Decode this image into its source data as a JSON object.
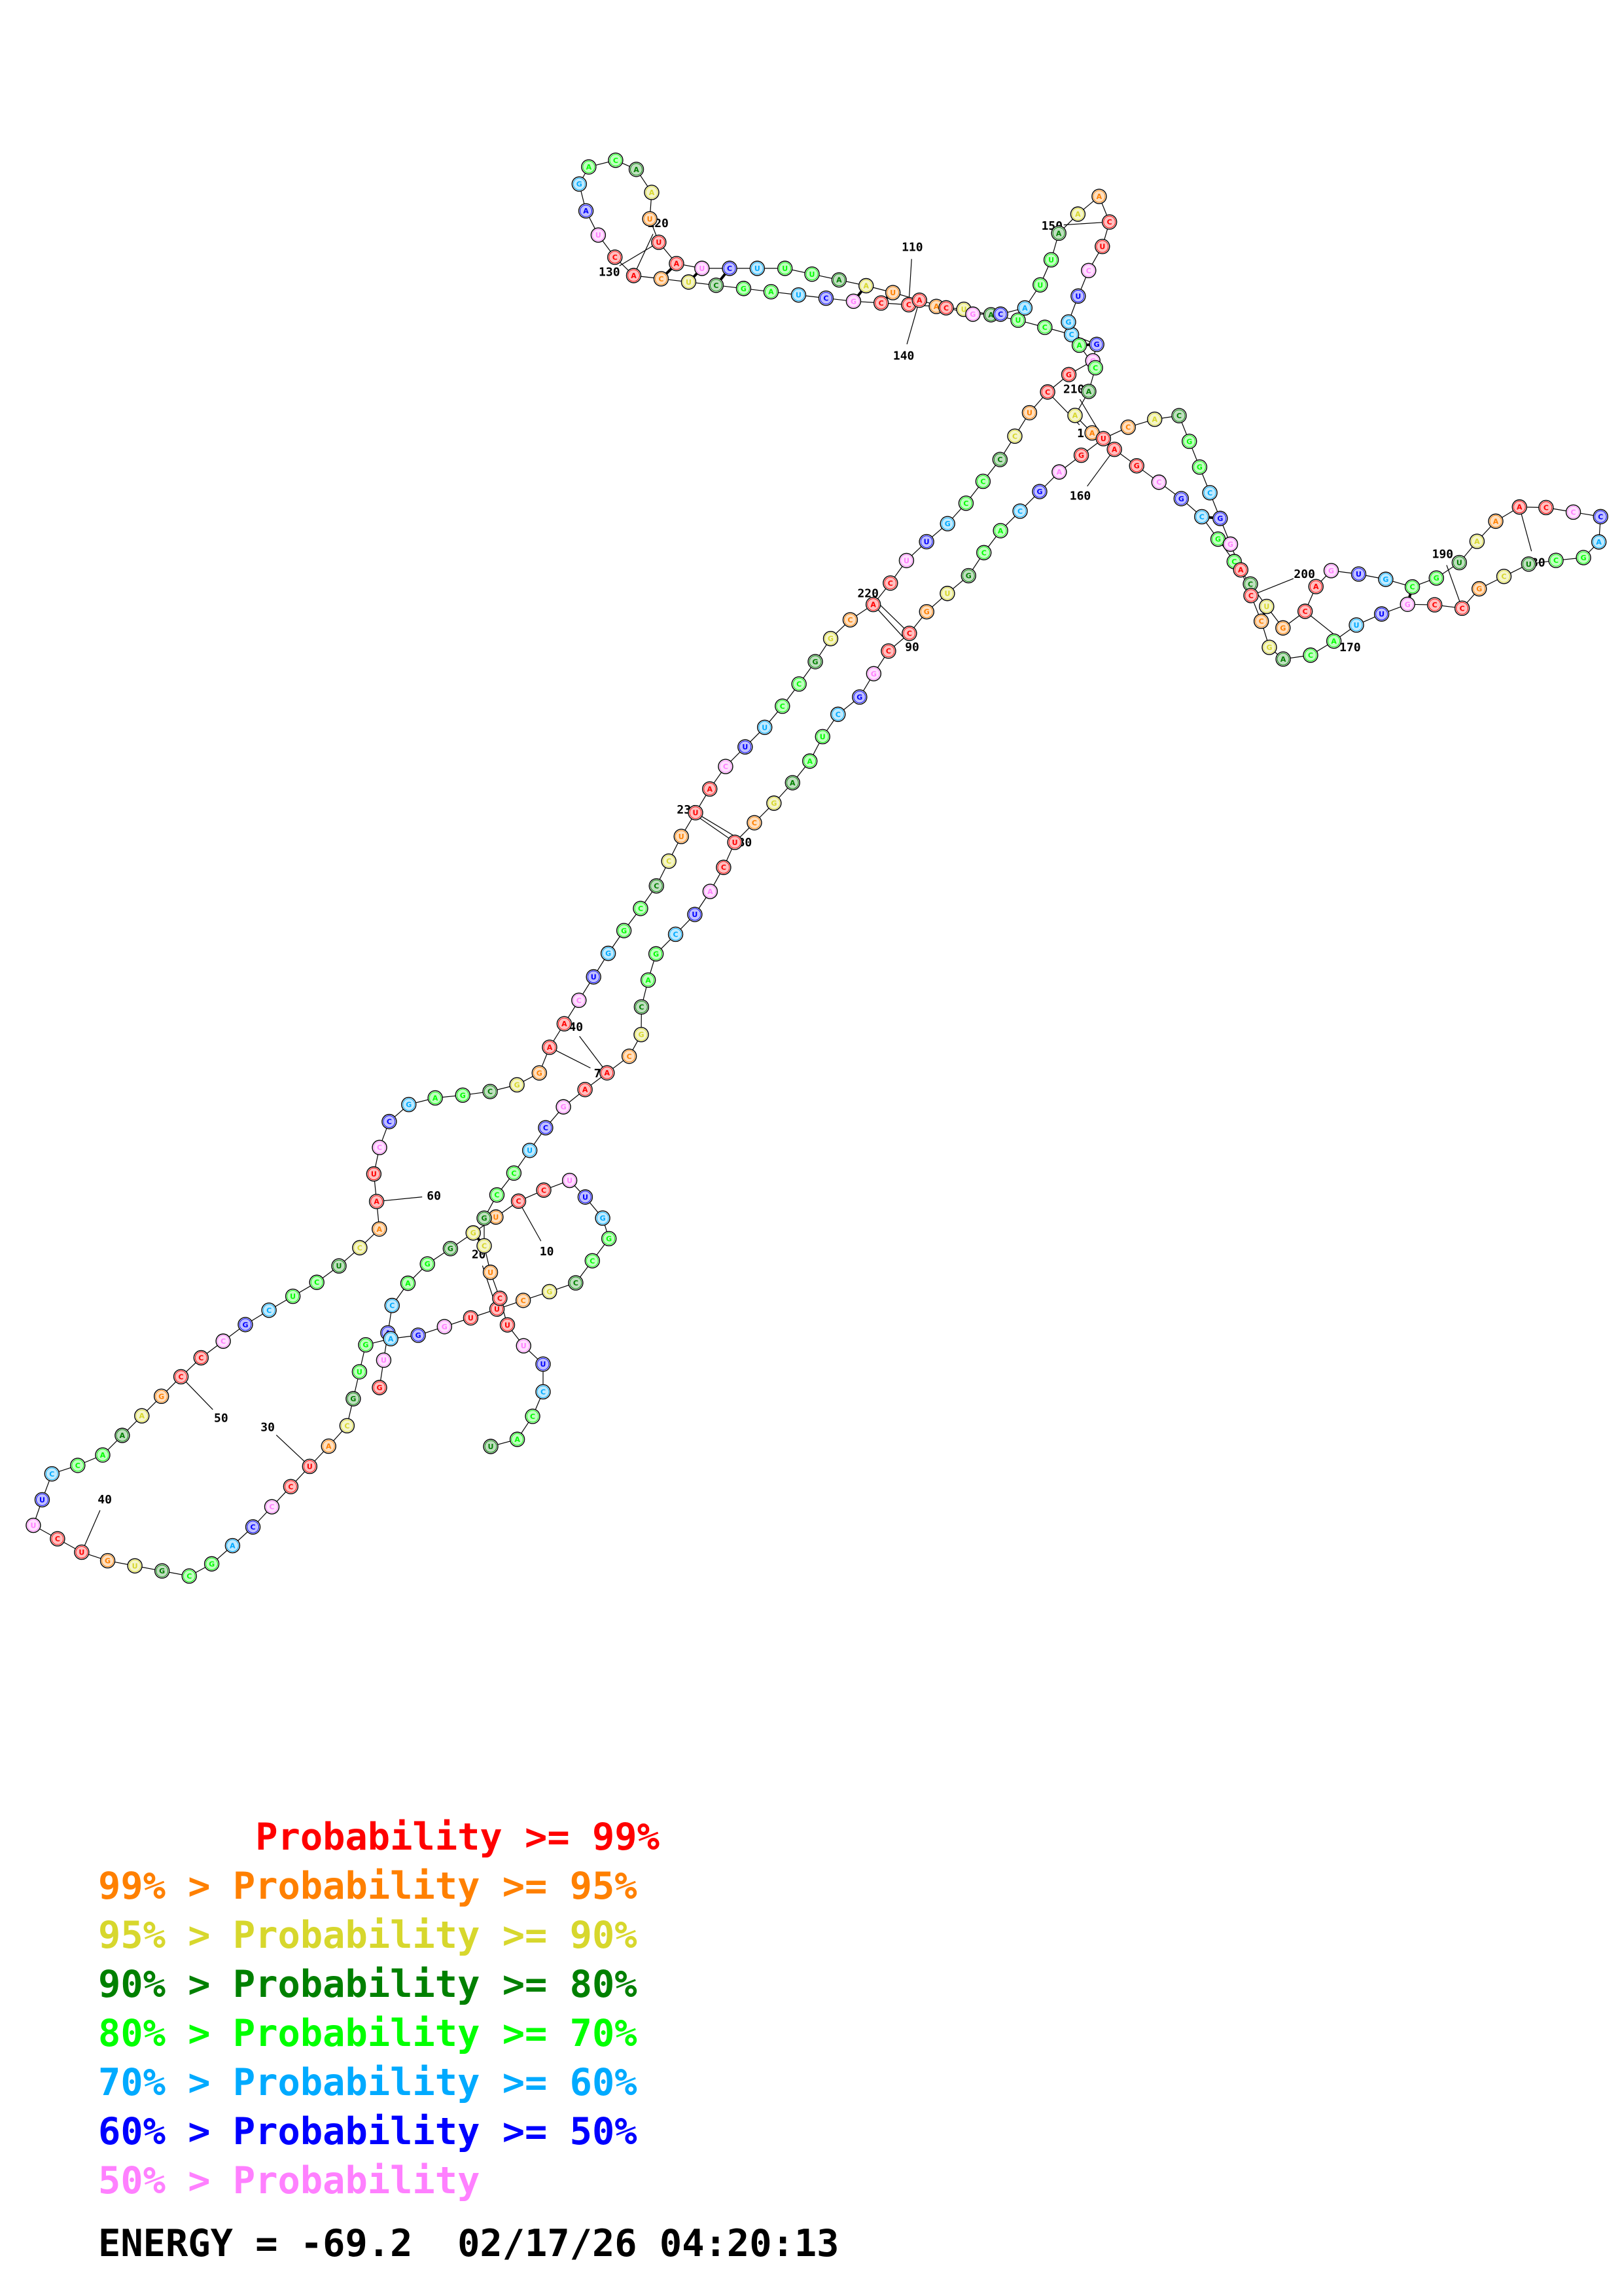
{
  "legend": [
    {
      "text": "       Probability >= 99%",
      "color": "#ff0000"
    },
    {
      "text": "99% > Probability >= 95%",
      "color": "#ff8000"
    },
    {
      "text": "95% > Probability >= 90%",
      "color": "#d7d72d"
    },
    {
      "text": "90% > Probability >= 80%",
      "color": "#008000"
    },
    {
      "text": "80% > Probability >= 70%",
      "color": "#00ff00"
    },
    {
      "text": "70% > Probability >= 60%",
      "color": "#00aaff"
    },
    {
      "text": "60% > Probability >= 50%",
      "color": "#0000ff"
    },
    {
      "text": "50% > Probability",
      "color": "#ff80ff"
    }
  ],
  "footer": {
    "energy": "ENERGY = -69.2",
    "timestamp": "02/17/26 04:20:13"
  },
  "structure": {
    "tick_labels": [
      "10",
      "20",
      "30",
      "40",
      "50",
      "60",
      "70",
      "80",
      "90",
      "100",
      "110",
      "120",
      "130",
      "140",
      "150",
      "160",
      "170",
      "180",
      "190",
      "200",
      "210",
      "220",
      "230",
      "240"
    ],
    "sequence": "GUACAGGGUCCUUGGCCGCUUGGAGUGCAUCCCAGCGUGUCUUCCAAAGCCCGCUCUCAAUCCGAGCGGAACUGGCCCUUACUUCCGGCACUUGCCCCUCGGGCCUAUACCGCUAGCUCACUAGACAAUUAUCUUUAAUACGCAUUAAACUCUGACAAAAGCGCGCCUGCAGUGCGUAAACCCAGCUCGCCGUUACAGCCAGGCGGCACUGAGCACGUGCCGGCUAAGCUCAUCGACGCAAGCUCCGCUCUUUCCAU"
  },
  "colors": {
    "p99": "#ff0000",
    "p95": "#ff8000",
    "p90": "#d7d72d",
    "p80": "#008000",
    "p70": "#00ff00",
    "p60": "#00aaff",
    "p50": "#0000ff",
    "plow": "#ff80ff"
  }
}
